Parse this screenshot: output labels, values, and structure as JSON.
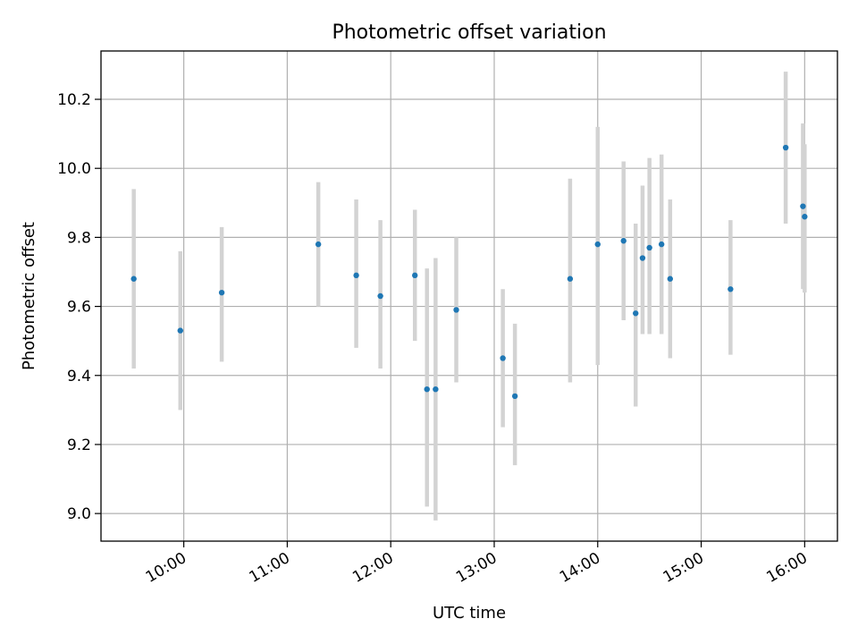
{
  "chart_data": {
    "type": "scatter",
    "title": "Photometric offset variation",
    "xlabel": "UTC time",
    "ylabel": "Photometric offset",
    "x_ticks": [
      "10:00",
      "11:00",
      "12:00",
      "13:00",
      "14:00",
      "15:00",
      "16:00"
    ],
    "y_ticks": [
      "9.0",
      "9.2",
      "9.4",
      "9.6",
      "9.8",
      "10.0",
      "10.2"
    ],
    "xlim": [
      "09:12",
      "16:19"
    ],
    "ylim": [
      8.92,
      10.34
    ],
    "grid": true,
    "legend": "none",
    "colors": {
      "point": "#1f77b4",
      "errorbar": "#d3d3d3",
      "grid": "#b0b0b0"
    },
    "series": [
      {
        "points": [
          {
            "x": "09:31",
            "y": 9.68,
            "yerr": [
              9.42,
              9.94
            ]
          },
          {
            "x": "09:58",
            "y": 9.53,
            "yerr": [
              9.3,
              9.76
            ]
          },
          {
            "x": "10:22",
            "y": 9.64,
            "yerr": [
              9.44,
              9.83
            ]
          },
          {
            "x": "11:18",
            "y": 9.78,
            "yerr": [
              9.6,
              9.96
            ]
          },
          {
            "x": "11:40",
            "y": 9.69,
            "yerr": [
              9.48,
              9.91
            ]
          },
          {
            "x": "11:54",
            "y": 9.63,
            "yerr": [
              9.42,
              9.85
            ]
          },
          {
            "x": "12:14",
            "y": 9.69,
            "yerr": [
              9.5,
              9.88
            ]
          },
          {
            "x": "12:21",
            "y": 9.36,
            "yerr": [
              9.02,
              9.71
            ]
          },
          {
            "x": "12:26",
            "y": 9.36,
            "yerr": [
              8.98,
              9.74
            ]
          },
          {
            "x": "12:38",
            "y": 9.59,
            "yerr": [
              9.38,
              9.8
            ]
          },
          {
            "x": "13:05",
            "y": 9.45,
            "yerr": [
              9.25,
              9.65
            ]
          },
          {
            "x": "13:12",
            "y": 9.34,
            "yerr": [
              9.14,
              9.55
            ]
          },
          {
            "x": "13:44",
            "y": 9.68,
            "yerr": [
              9.38,
              9.97
            ]
          },
          {
            "x": "14:00",
            "y": 9.78,
            "yerr": [
              9.43,
              10.12
            ]
          },
          {
            "x": "14:15",
            "y": 9.79,
            "yerr": [
              9.56,
              10.02
            ]
          },
          {
            "x": "14:22",
            "y": 9.58,
            "yerr": [
              9.31,
              9.84
            ]
          },
          {
            "x": "14:26",
            "y": 9.74,
            "yerr": [
              9.52,
              9.95
            ]
          },
          {
            "x": "14:30",
            "y": 9.77,
            "yerr": [
              9.52,
              10.03
            ]
          },
          {
            "x": "14:37",
            "y": 9.78,
            "yerr": [
              9.52,
              10.04
            ]
          },
          {
            "x": "14:42",
            "y": 9.68,
            "yerr": [
              9.45,
              9.91
            ]
          },
          {
            "x": "15:17",
            "y": 9.65,
            "yerr": [
              9.46,
              9.85
            ]
          },
          {
            "x": "15:49",
            "y": 10.06,
            "yerr": [
              9.84,
              10.28
            ]
          },
          {
            "x": "15:59",
            "y": 9.89,
            "yerr": [
              9.65,
              10.13
            ]
          },
          {
            "x": "16:00",
            "y": 9.86,
            "yerr": [
              9.64,
              10.07
            ]
          }
        ]
      }
    ]
  }
}
